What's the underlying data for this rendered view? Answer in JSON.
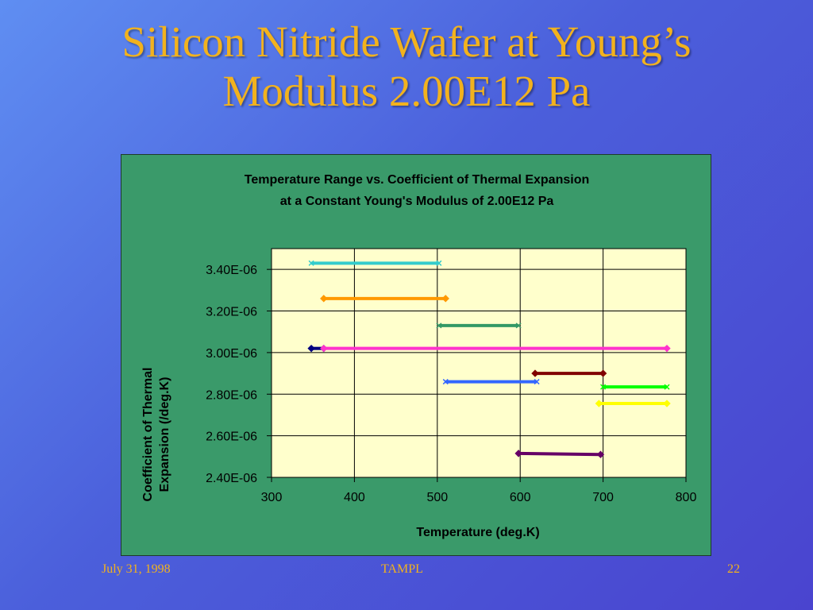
{
  "slide": {
    "title_line1": "Silicon Nitride Wafer at Young’s",
    "title_line2": "Modulus 2.00E12 Pa",
    "footer_left": "July 31, 1998",
    "footer_center": "TAMPL",
    "footer_right": "22"
  },
  "chart_data": {
    "type": "line",
    "title": "Temperature Range vs. Coefficient of Thermal Expansion",
    "subtitle": "at a Constant Young's Modulus of 2.00E12 Pa",
    "xlabel": "Temperature (deg.K)",
    "ylabel_line1": "Coefficient of Thermal",
    "ylabel_line2": "Expansion (/deg.K)",
    "xlim": [
      300,
      800
    ],
    "ylim": [
      2.4e-06,
      3.5e-06
    ],
    "x_ticks": [
      300,
      400,
      500,
      600,
      700,
      800
    ],
    "x_tick_labels": [
      "300",
      "400",
      "500",
      "600",
      "700",
      "800"
    ],
    "y_ticks": [
      2.4e-06,
      2.6e-06,
      2.8e-06,
      3e-06,
      3.2e-06,
      3.4e-06
    ],
    "y_tick_labels": [
      "2.40E-06",
      "2.60E-06",
      "2.80E-06",
      "3.00E-06",
      "3.20E-06",
      "3.40E-06"
    ],
    "grid": "vertical",
    "legend": "none",
    "plot_background": "#ffffcc",
    "series": [
      {
        "color": "#33cccc",
        "marker": "x",
        "x": [
          348,
          502
        ],
        "y": [
          3.43e-06,
          3.43e-06
        ]
      },
      {
        "color": "#ff9900",
        "marker": "diamond",
        "x": [
          363,
          510
        ],
        "y": [
          3.26e-06,
          3.26e-06
        ]
      },
      {
        "color": "#339966",
        "marker": "x",
        "x": [
          502,
          598
        ],
        "y": [
          3.13e-06,
          3.13e-06
        ]
      },
      {
        "color": "#000080",
        "marker": "diamond",
        "x": [
          348,
          363
        ],
        "y": [
          3.02e-06,
          3.02e-06
        ]
      },
      {
        "color": "#ff33cc",
        "marker": "diamond",
        "x": [
          363,
          777
        ],
        "y": [
          3.02e-06,
          3.02e-06
        ]
      },
      {
        "color": "#800000",
        "marker": "diamond",
        "x": [
          618,
          700
        ],
        "y": [
          2.9e-06,
          2.9e-06
        ]
      },
      {
        "color": "#3366ff",
        "marker": "x",
        "x": [
          510,
          620
        ],
        "y": [
          2.86e-06,
          2.86e-06
        ]
      },
      {
        "color": "#00ff00",
        "marker": "x",
        "x": [
          700,
          777
        ],
        "y": [
          2.835e-06,
          2.835e-06
        ]
      },
      {
        "color": "#ffff00",
        "marker": "diamond",
        "x": [
          695,
          777
        ],
        "y": [
          2.755e-06,
          2.755e-06
        ]
      },
      {
        "color": "#660066",
        "marker": "diamond",
        "x": [
          598,
          697
        ],
        "y": [
          2.515e-06,
          2.51e-06
        ]
      }
    ]
  }
}
